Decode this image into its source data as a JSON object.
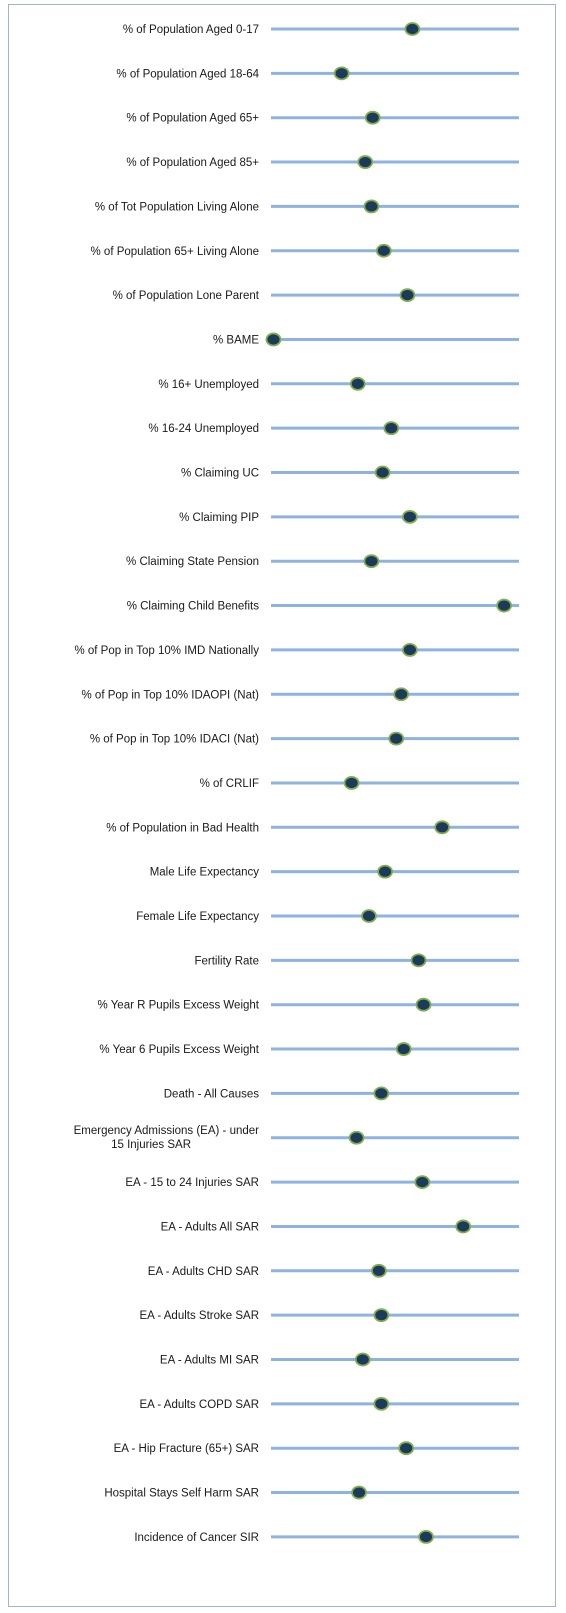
{
  "chart_data": {
    "type": "scatter",
    "title": "",
    "xlabel": "",
    "ylabel": "",
    "xlim": [
      0,
      100
    ],
    "grid": false,
    "legend": "none",
    "colors": {
      "track": "#8fb3e0",
      "marker_fill": "#1d3a5c",
      "marker_edge": "#7fb04a"
    },
    "categories": [
      "% of Population Aged 0-17",
      "% of Population Aged 18-64",
      "% of Population Aged 65+",
      "% of Population Aged 85+",
      "% of Tot Population Living Alone",
      "% of Population 65+ Living Alone",
      "% of Population Lone Parent",
      "% BAME",
      "% 16+ Unemployed",
      "% 16-24 Unemployed",
      "% Claiming UC",
      "% Claiming PIP",
      "% Claiming State Pension",
      "% Claiming Child Benefits",
      "% of Pop in Top 10% IMD Nationally",
      "% of Pop in Top 10% IDAOPI (Nat)",
      "% of Pop in Top 10% IDACI (Nat)",
      "% of CRLIF",
      "% of Population in Bad Health",
      "Male Life Expectancy",
      "Female Life Expectancy",
      "Fertility Rate",
      "% Year R Pupils Excess Weight",
      "% Year 6 Pupils Excess Weight",
      "Death - All Causes",
      [
        "Emergency Admissions (EA) - under",
        "15 Injuries SAR"
      ],
      "EA - 15 to 24 Injuries SAR",
      "EA - Adults All SAR",
      "EA - Adults CHD SAR",
      "EA - Adults Stroke SAR",
      "EA - Adults MI SAR",
      "EA - Adults COPD SAR",
      "EA - Hip Fracture (65+) SAR",
      "Hospital Stays Self Harm SAR",
      "Incidence of Cancer SIR"
    ],
    "values": [
      57,
      28.5,
      41,
      38,
      40.5,
      45.5,
      55,
      1,
      35,
      48.5,
      45,
      56,
      40.5,
      94,
      56,
      52.5,
      50.5,
      32.5,
      69,
      46,
      39.5,
      59.5,
      61.5,
      53.5,
      44.5,
      34.5,
      61,
      77.5,
      43.5,
      44.5,
      37,
      44.5,
      54.5,
      35.5,
      62.5
    ]
  }
}
